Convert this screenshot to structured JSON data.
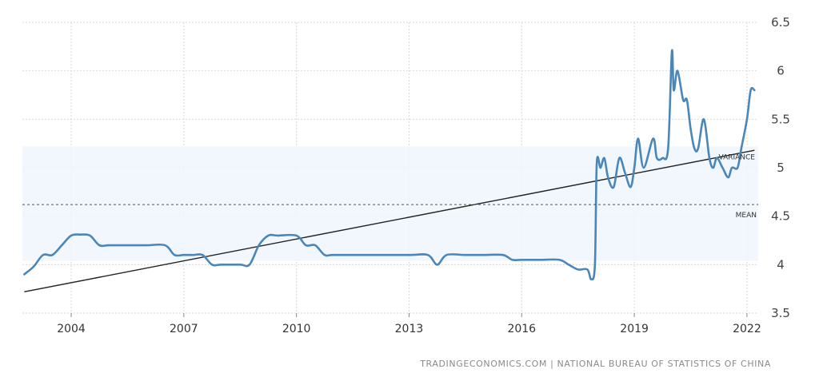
{
  "chart_data": {
    "type": "line",
    "title": "",
    "xlabel": "",
    "ylabel": "",
    "ylim": [
      3.5,
      6.5
    ],
    "xlim": [
      2002.7,
      2022.3
    ],
    "y_ticks": [
      "3.5",
      "4",
      "4.5",
      "5",
      "5.5",
      "6",
      "6.5"
    ],
    "x_ticks": [
      "2004",
      "2007",
      "2010",
      "2013",
      "2016",
      "2019",
      "2022"
    ],
    "grid": true,
    "series": [
      {
        "name": "",
        "color": "#4a86b8",
        "x": [
          2002.75,
          2003.0,
          2003.25,
          2003.5,
          2003.75,
          2004.0,
          2004.25,
          2004.5,
          2004.75,
          2005.0,
          2005.5,
          2006.0,
          2006.5,
          2006.75,
          2007.0,
          2007.25,
          2007.5,
          2007.75,
          2008.0,
          2008.5,
          2008.75,
          2009.0,
          2009.25,
          2009.5,
          2010.0,
          2010.25,
          2010.5,
          2010.75,
          2011.0,
          2012.0,
          2013.0,
          2013.5,
          2013.75,
          2014.0,
          2014.5,
          2015.0,
          2015.5,
          2015.75,
          2016.0,
          2016.5,
          2017.0,
          2017.25,
          2017.5,
          2017.75,
          2017.85,
          2017.95,
          2018.0,
          2018.1,
          2018.2,
          2018.3,
          2018.45,
          2018.6,
          2018.75,
          2018.9,
          2019.0,
          2019.1,
          2019.25,
          2019.5,
          2019.6,
          2019.75,
          2019.9,
          2020.0,
          2020.05,
          2020.15,
          2020.3,
          2020.4,
          2020.5,
          2020.6,
          2020.7,
          2020.85,
          2021.0,
          2021.1,
          2021.2,
          2021.35,
          2021.5,
          2021.6,
          2021.75,
          2021.85,
          2022.0,
          2022.1,
          2022.2
        ],
        "values": [
          3.9,
          3.98,
          4.1,
          4.1,
          4.2,
          4.3,
          4.31,
          4.3,
          4.2,
          4.2,
          4.2,
          4.2,
          4.2,
          4.1,
          4.1,
          4.1,
          4.1,
          4.0,
          4.0,
          4.0,
          4.0,
          4.2,
          4.3,
          4.3,
          4.3,
          4.2,
          4.2,
          4.1,
          4.1,
          4.1,
          4.1,
          4.1,
          4.0,
          4.1,
          4.1,
          4.1,
          4.1,
          4.05,
          4.05,
          4.05,
          4.05,
          4.0,
          3.95,
          3.95,
          3.85,
          4.0,
          5.05,
          5.0,
          5.1,
          4.9,
          4.8,
          5.1,
          4.95,
          4.8,
          5.0,
          5.3,
          5.0,
          5.3,
          5.1,
          5.1,
          5.2,
          6.2,
          5.8,
          6.0,
          5.7,
          5.7,
          5.4,
          5.2,
          5.2,
          5.5,
          5.1,
          5.0,
          5.1,
          5.0,
          4.9,
          5.0,
          5.0,
          5.2,
          5.5,
          5.8,
          5.8
        ]
      }
    ],
    "mean": {
      "label": "MEAN",
      "value": 4.62
    },
    "variance": {
      "label": "VARIANCE",
      "low": 4.04,
      "high": 5.22
    },
    "trend": {
      "x": [
        2002.75,
        2022.2
      ],
      "y": [
        3.72,
        5.18
      ]
    }
  },
  "source_text": "TRADINGECONOMICS.COM  |  NATIONAL BUREAU OF STATISTICS OF CHINA"
}
